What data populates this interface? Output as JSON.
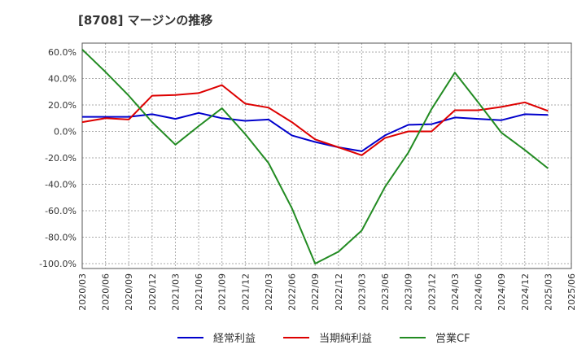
{
  "title": "[8708]  マージンの推移",
  "chart_data": {
    "type": "line",
    "title": "[8708]  マージンの推移",
    "xlabel": "",
    "ylabel": "",
    "ylim": [
      -100,
      60
    ],
    "yticks": [
      "60.0%",
      "40.0%",
      "20.0%",
      "0.0%",
      "-20.0%",
      "-40.0%",
      "-60.0%",
      "-80.0%",
      "-100.0%"
    ],
    "ytick_values": [
      60,
      40,
      20,
      0,
      -20,
      -40,
      -60,
      -80,
      -100
    ],
    "categories": [
      "2020/03",
      "2020/06",
      "2020/09",
      "2020/12",
      "2021/03",
      "2021/06",
      "2021/09",
      "2021/12",
      "2022/03",
      "2022/06",
      "2022/09",
      "2022/12",
      "2023/03",
      "2023/06",
      "2023/09",
      "2023/12",
      "2024/03",
      "2024/06",
      "2024/09",
      "2024/12",
      "2025/03",
      "2025/06"
    ],
    "grid": true,
    "legend_position": "bottom",
    "series": [
      {
        "name": "経常利益",
        "color": "#0000cc",
        "values": [
          11,
          11,
          11,
          13,
          9.5,
          14,
          10,
          8,
          9,
          -3,
          -8,
          -12,
          -15,
          -3,
          5,
          5.5,
          10.5,
          9.5,
          8.5,
          13,
          12.5,
          null
        ]
      },
      {
        "name": "当期純利益",
        "color": "#dd0000",
        "values": [
          7,
          10,
          9,
          27,
          27.5,
          29,
          35,
          21,
          18,
          7,
          -6,
          -12,
          -18,
          -5,
          0,
          0,
          16,
          16,
          18.5,
          22,
          15.5,
          null
        ]
      },
      {
        "name": "営業CF",
        "color": "#228b22",
        "values": [
          62,
          45,
          27,
          7,
          -10,
          4,
          17.5,
          -2,
          -24,
          -58,
          -100,
          -91,
          -75,
          -42,
          -16,
          17,
          44.5,
          22,
          -1,
          -14,
          -28,
          null
        ]
      }
    ]
  }
}
